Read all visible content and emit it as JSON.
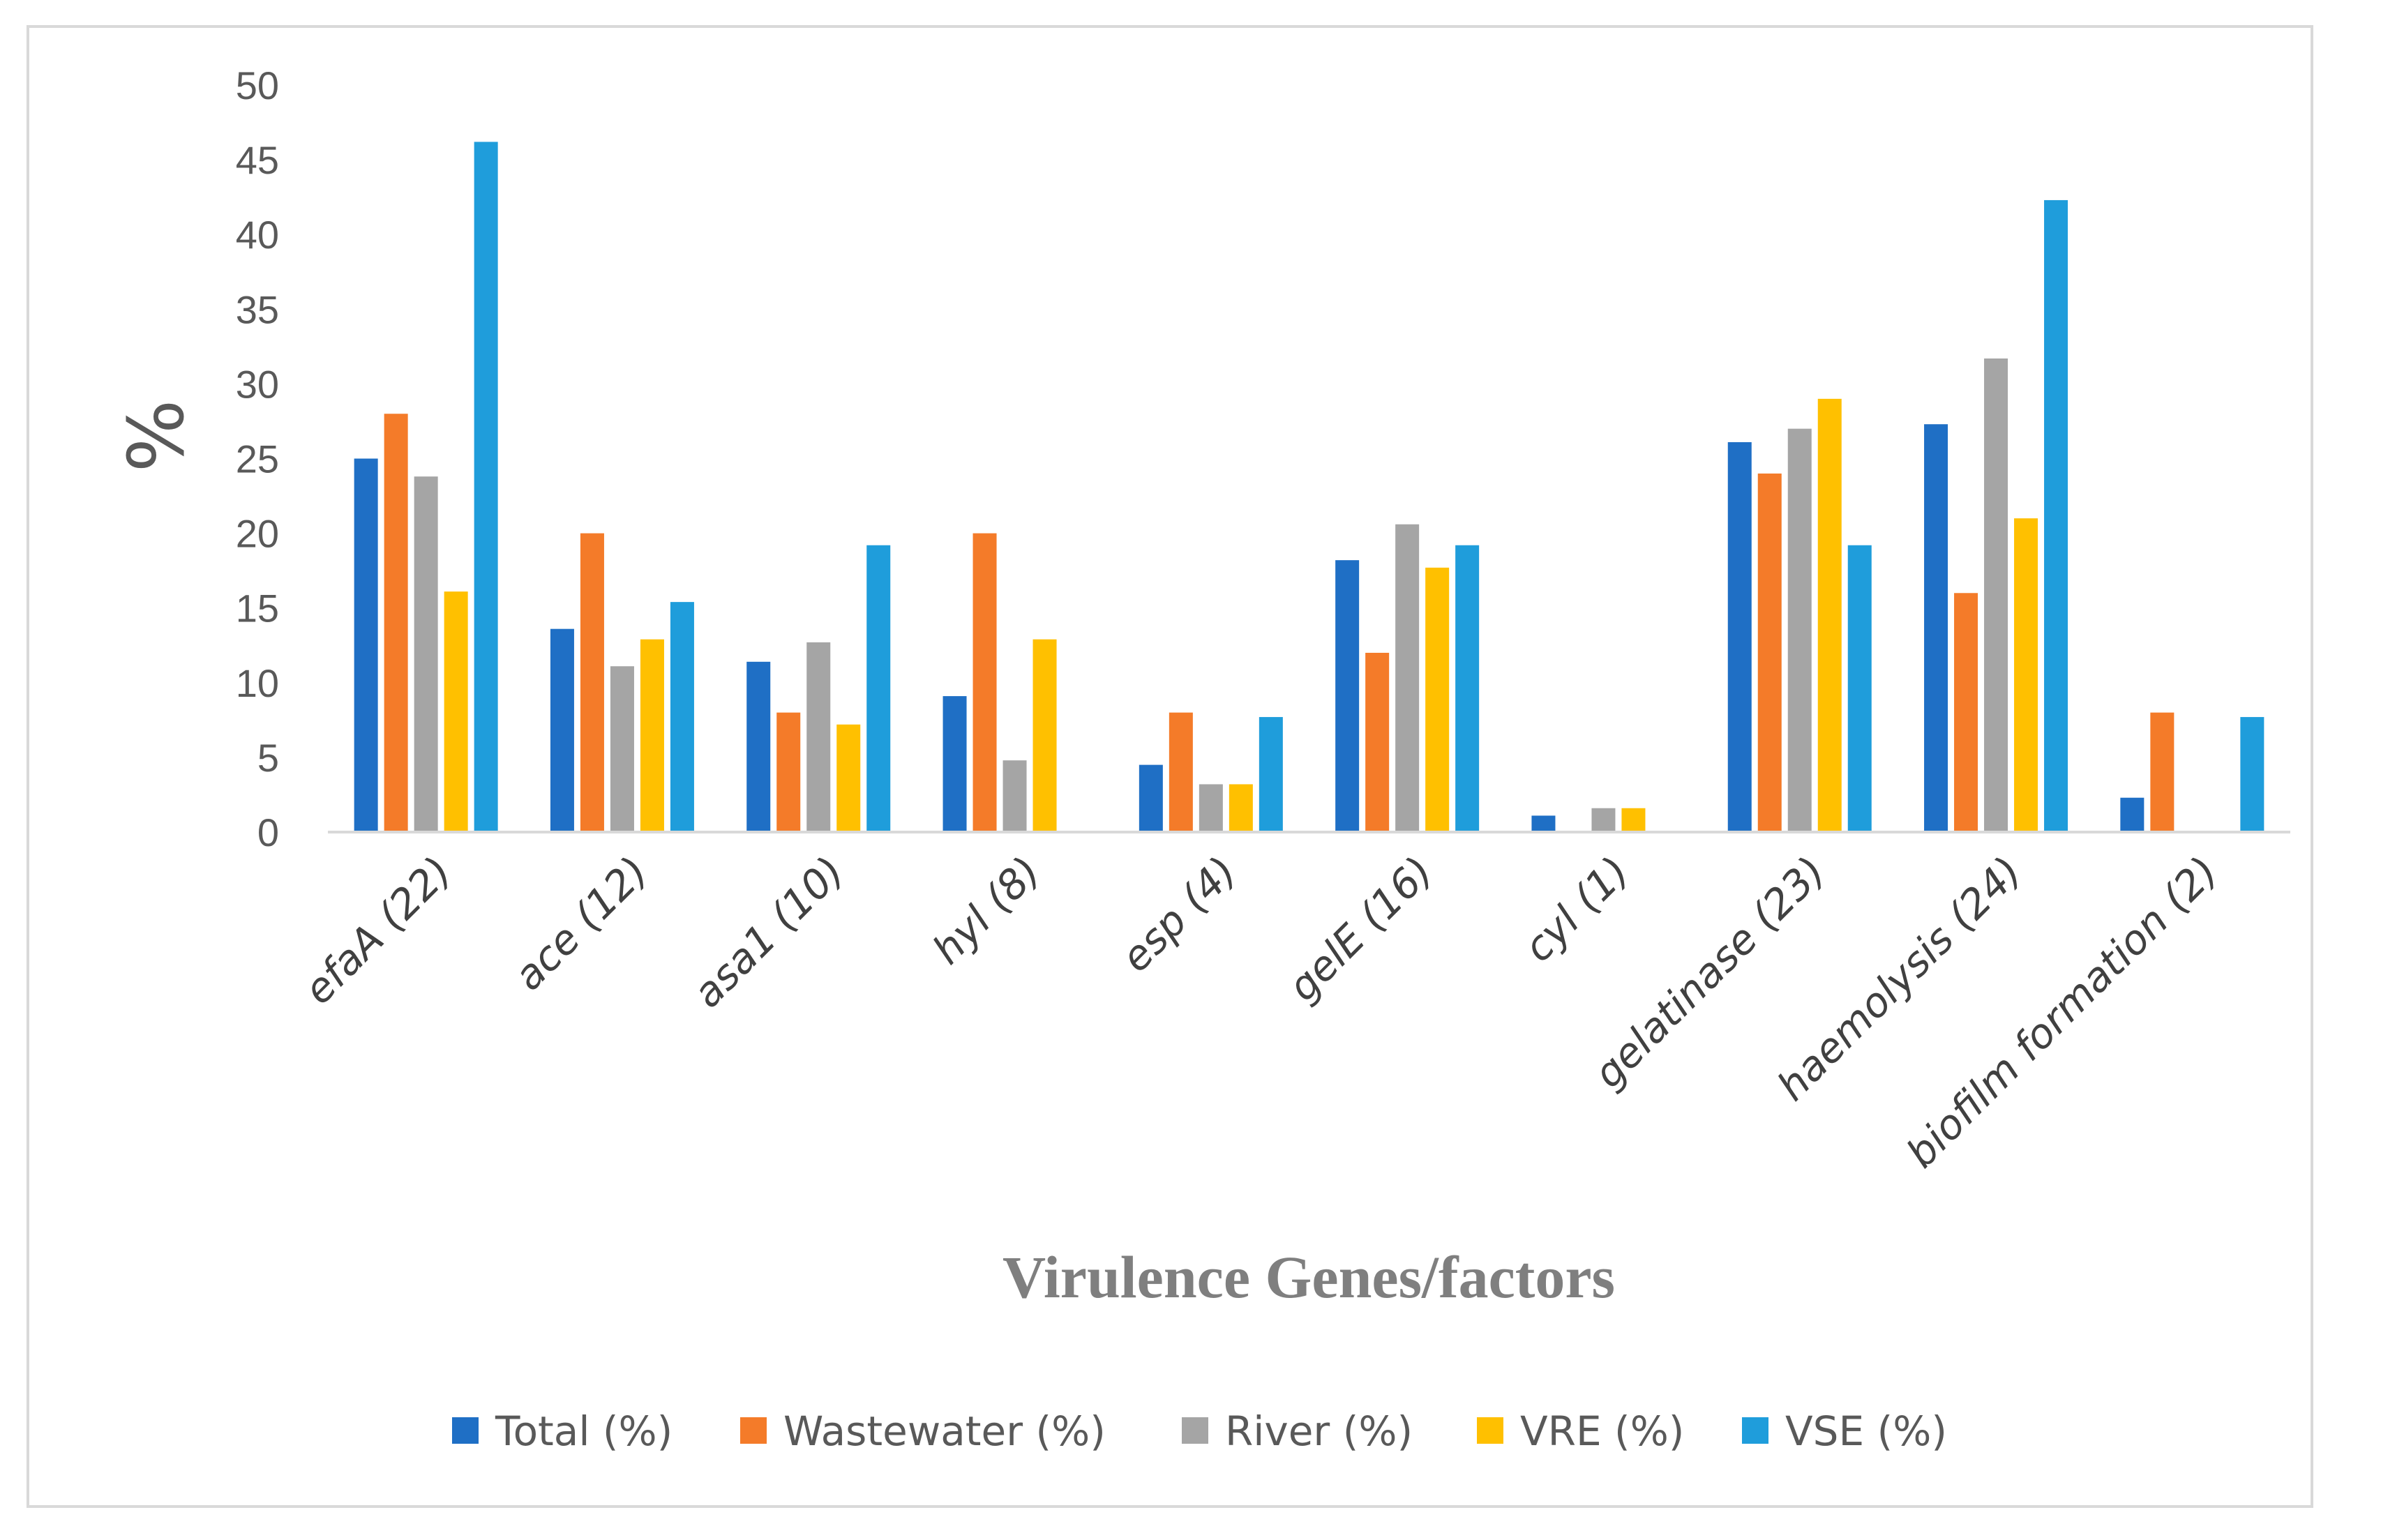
{
  "chart_data": {
    "type": "bar",
    "title": "",
    "xlabel": "Virulence Genes/factors",
    "ylabel": "%",
    "ylim": [
      0,
      50
    ],
    "yticks": [
      0,
      5,
      10,
      15,
      20,
      25,
      30,
      35,
      40,
      45,
      50
    ],
    "grid": false,
    "legend_position": "bottom",
    "categories": [
      "efaA (22)",
      "ace (12)",
      "asa1 (10)",
      "hyl (8)",
      "esp (4)",
      "gelE (16)",
      "cyl (1)",
      "gelatinase (23)",
      "haemolysis (24)",
      "biofilm formation (2)"
    ],
    "series": [
      {
        "name": "Total (%)",
        "color": "#1f6fc5",
        "values": [
          25.0,
          13.6,
          11.4,
          9.1,
          4.5,
          18.2,
          1.1,
          26.1,
          27.3,
          2.3
        ]
      },
      {
        "name": "Wastewater (%)",
        "color": "#f47b29",
        "values": [
          28.0,
          20.0,
          8.0,
          20.0,
          8.0,
          12.0,
          0,
          24.0,
          16.0,
          8.0
        ]
      },
      {
        "name": "River (%)",
        "color": "#a5a5a5",
        "values": [
          23.8,
          11.1,
          12.7,
          4.8,
          3.2,
          20.6,
          1.6,
          27.0,
          31.7,
          0
        ]
      },
      {
        "name": "VRE (%)",
        "color": "#ffc000",
        "values": [
          16.1,
          12.9,
          7.2,
          12.9,
          3.2,
          17.7,
          1.6,
          29.0,
          21.0,
          0
        ]
      },
      {
        "name": "VSE (%)",
        "color": "#1f9ddb",
        "values": [
          46.2,
          15.4,
          19.2,
          0,
          7.7,
          19.2,
          0,
          19.2,
          42.3,
          7.7
        ]
      }
    ]
  }
}
